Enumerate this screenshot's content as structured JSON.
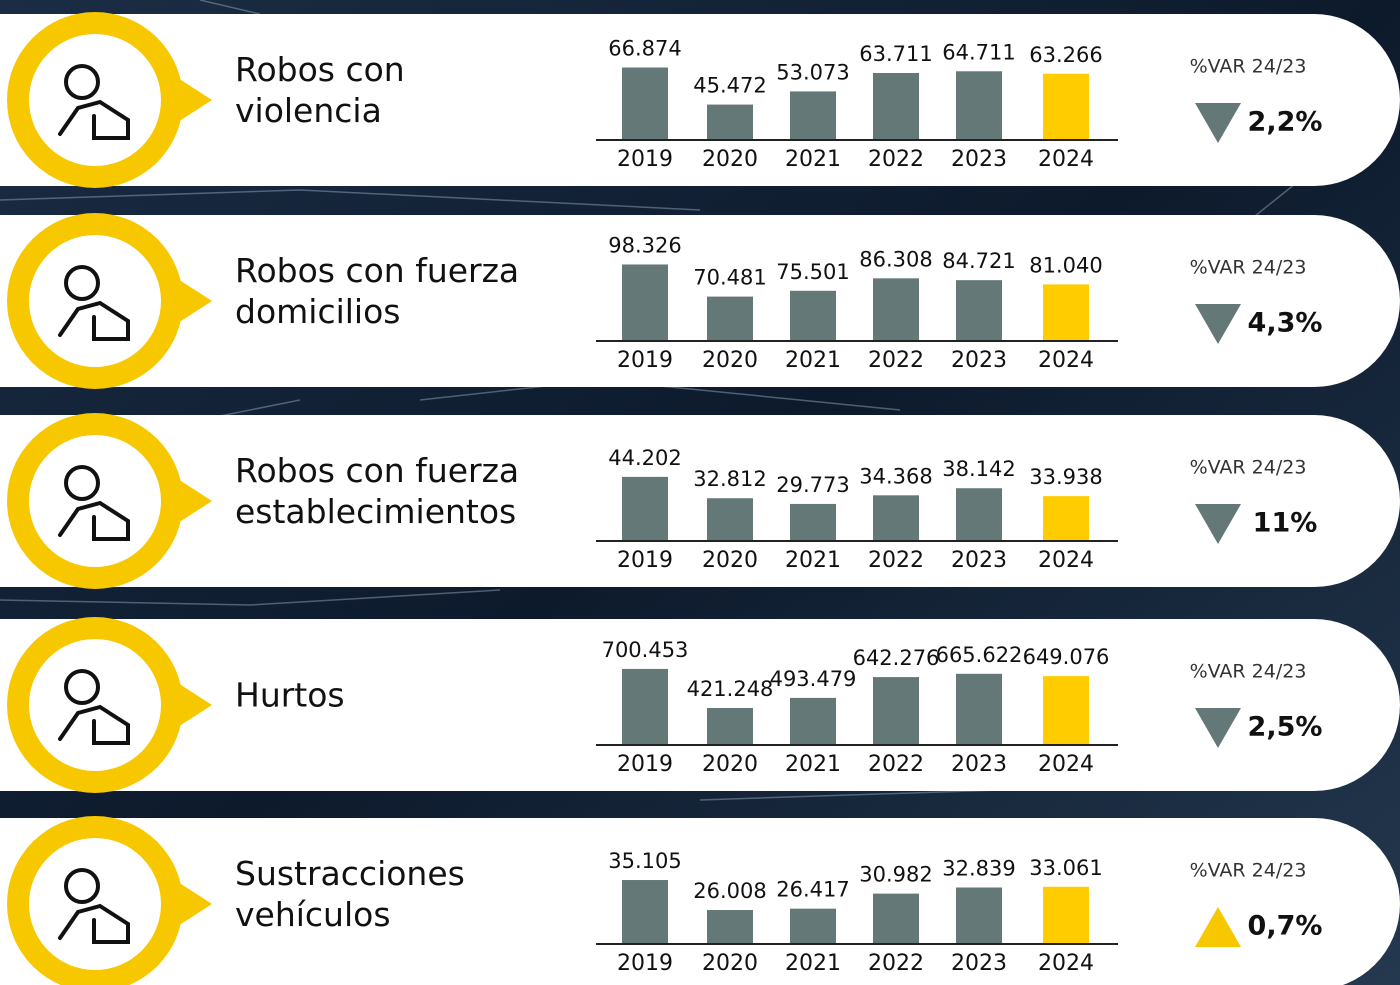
{
  "chart_data": [
    {
      "type": "bar",
      "title": [
        "Robos con",
        "violencia"
      ],
      "categories": [
        "2019",
        "2020",
        "2021",
        "2022",
        "2023",
        "2024"
      ],
      "values": [
        66874,
        45472,
        53073,
        63711,
        64711,
        63266
      ],
      "value_labels": [
        "66.874",
        "45.472",
        "53.073",
        "63.711",
        "64.711",
        "63.266"
      ],
      "colors": [
        "#647878",
        "#647878",
        "#647878",
        "#647878",
        "#647878",
        "#ffcc00"
      ],
      "ylim": [
        25000,
        77000
      ],
      "annotation": "%VAR 24/23",
      "change": {
        "value": 2.2,
        "label": "2,2%"
      },
      "trend": "down"
    },
    {
      "type": "bar",
      "title": [
        "Robos con fuerza",
        "domicilios"
      ],
      "categories": [
        "2019",
        "2020",
        "2021",
        "2022",
        "2023",
        "2024"
      ],
      "values": [
        98326,
        70481,
        75501,
        86308,
        84721,
        81040
      ],
      "value_labels": [
        "98.326",
        "70.481",
        "75.501",
        "86.308",
        "84.721",
        "81.040"
      ],
      "colors": [
        "#647878",
        "#647878",
        "#647878",
        "#647878",
        "#647878",
        "#ffcc00"
      ],
      "ylim": [
        32000,
        110000
      ],
      "annotation": "%VAR 24/23",
      "change": {
        "value": 4.3,
        "label": "4,3%"
      },
      "trend": "down"
    },
    {
      "type": "bar",
      "title": [
        "Robos con fuerza",
        "establecimientos"
      ],
      "categories": [
        "2019",
        "2020",
        "2021",
        "2022",
        "2023",
        "2024"
      ],
      "values": [
        44202,
        32812,
        29773,
        34368,
        38142,
        33938
      ],
      "value_labels": [
        "44.202",
        "32.812",
        "29.773",
        "34.368",
        "38.142",
        "33.938"
      ],
      "colors": [
        "#647878",
        "#647878",
        "#647878",
        "#647878",
        "#647878",
        "#ffcc00"
      ],
      "ylim": [
        10000,
        58000
      ],
      "annotation": "%VAR 24/23",
      "change": {
        "value": 11,
        "label": "11%"
      },
      "trend": "down"
    },
    {
      "type": "bar",
      "title": [
        "Hurtos"
      ],
      "categories": [
        "2019",
        "2020",
        "2021",
        "2022",
        "2023",
        "2024"
      ],
      "values": [
        700453,
        421248,
        493479,
        642276,
        665622,
        649076
      ],
      "value_labels": [
        "700.453",
        "421.248",
        "493.479",
        "642.276",
        "665.622",
        "649.076"
      ],
      "colors": [
        "#647878",
        "#647878",
        "#647878",
        "#647878",
        "#647878",
        "#ffcc00"
      ],
      "ylim": [
        157000,
        800000
      ],
      "annotation": "%VAR 24/23",
      "change": {
        "value": 2.5,
        "label": "2,5%"
      },
      "trend": "down"
    },
    {
      "type": "bar",
      "title": [
        "Sustracciones",
        "vehículos"
      ],
      "categories": [
        "2019",
        "2020",
        "2021",
        "2022",
        "2023",
        "2024"
      ],
      "values": [
        35105,
        26008,
        26417,
        30982,
        32839,
        33061
      ],
      "value_labels": [
        "35.105",
        "26.008",
        "26.417",
        "30.982",
        "32.839",
        "33.061"
      ],
      "colors": [
        "#647878",
        "#647878",
        "#647878",
        "#647878",
        "#647878",
        "#ffcc00"
      ],
      "ylim": [
        15700,
        43000
      ],
      "annotation": "%VAR 24/23",
      "change": {
        "value": 0.7,
        "label": "0,7%"
      },
      "trend": "up"
    }
  ]
}
